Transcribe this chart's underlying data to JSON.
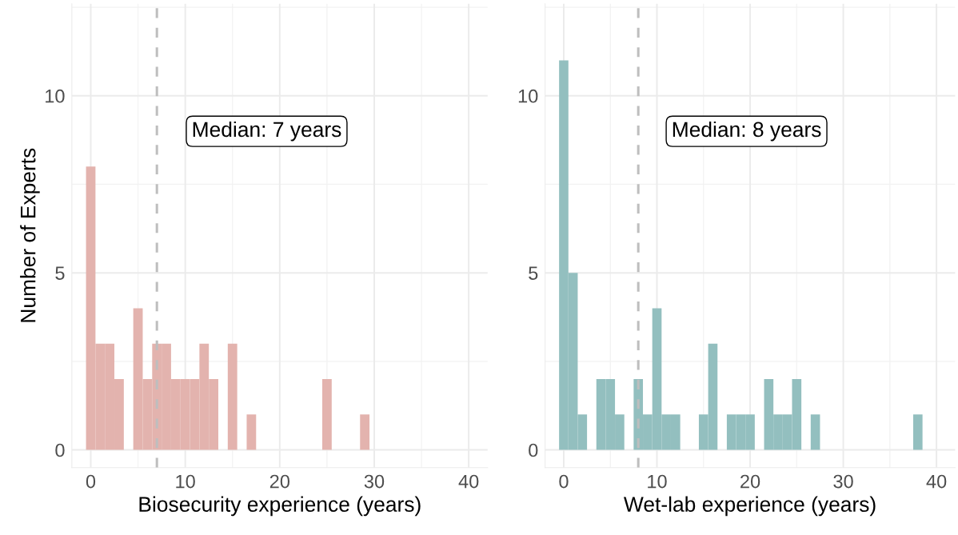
{
  "chart_data": [
    {
      "type": "histogram",
      "xlabel": "Biosecurity experience (years)",
      "ylabel": "Number of Experts",
      "bins": [
        -0.5,
        0.5,
        1.5,
        2.5,
        3.5,
        4.5,
        5.5,
        6.5,
        7.5,
        8.5,
        9.5,
        10.5,
        11.5,
        12.5,
        13.5,
        14.5,
        15.5,
        16.5,
        17.5,
        18.5,
        19.5,
        20.5,
        21.5,
        22.5,
        23.5,
        24.5,
        25.5,
        26.5,
        27.5,
        28.5,
        29.5
      ],
      "values": [
        8,
        3,
        3,
        2,
        0,
        4,
        2,
        3,
        3,
        2,
        2,
        2,
        3,
        2,
        0,
        3,
        0,
        1,
        0,
        0,
        0,
        0,
        0,
        0,
        0,
        2,
        0,
        0,
        0,
        1
      ],
      "color": "#e3b3ae",
      "xlim": [
        -2,
        42
      ],
      "xticks": [
        0,
        10,
        20,
        30,
        40
      ],
      "ylim": [
        -0.5,
        12.6
      ],
      "yticks": [
        0,
        5,
        10
      ],
      "grid": true,
      "ref_lines": [
        {
          "axis": "x",
          "value": 7,
          "label": "Median: 7 years",
          "color": "#bebebe",
          "line_style": "dashed"
        }
      ]
    },
    {
      "type": "histogram",
      "xlabel": "Wet-lab experience (years)",
      "bins": [
        -0.5,
        0.5,
        1.5,
        2.5,
        3.5,
        4.5,
        5.5,
        6.5,
        7.5,
        8.5,
        9.5,
        10.5,
        11.5,
        12.5,
        13.5,
        14.5,
        15.5,
        16.5,
        17.5,
        18.5,
        19.5,
        20.5,
        21.5,
        22.5,
        23.5,
        24.5,
        25.5,
        26.5,
        27.5,
        28.5,
        29.5,
        30.5,
        31.5,
        32.5,
        33.5,
        34.5,
        35.5,
        36.5,
        37.5,
        38.5
      ],
      "values": [
        11,
        5,
        1,
        0,
        2,
        2,
        1,
        0,
        2,
        1,
        4,
        1,
        1,
        0,
        0,
        1,
        3,
        0,
        1,
        1,
        1,
        0,
        2,
        1,
        1,
        2,
        0,
        1,
        0,
        0,
        0,
        0,
        0,
        0,
        0,
        0,
        0,
        0,
        1
      ],
      "color": "#93bfbf",
      "xlim": [
        -2,
        42
      ],
      "xticks": [
        0,
        10,
        20,
        30,
        40
      ],
      "ylim": [
        -0.5,
        12.6
      ],
      "yticks": [
        0,
        5,
        10
      ],
      "grid": true,
      "ref_lines": [
        {
          "axis": "x",
          "value": 8,
          "label": "Median: 8 years",
          "color": "#bebebe",
          "line_style": "dashed"
        }
      ]
    }
  ]
}
